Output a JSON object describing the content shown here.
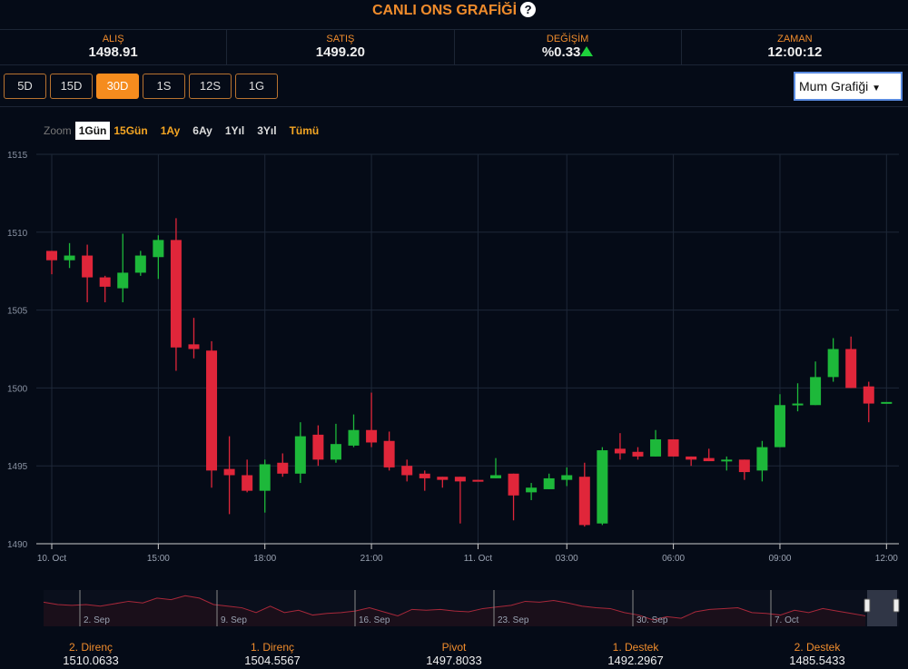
{
  "header": {
    "title": "CANLI ONS GRAFİĞİ",
    "help_icon": "?"
  },
  "stats": [
    {
      "label": "ALIŞ",
      "value": "1498.91"
    },
    {
      "label": "SATIŞ",
      "value": "1499.20"
    },
    {
      "label": "DEĞİŞİM",
      "value": "%0.33"
    },
    {
      "label": "ZAMAN",
      "value": "12:00:12"
    }
  ],
  "periods": [
    {
      "label": "5D"
    },
    {
      "label": "15D"
    },
    {
      "label": "30D",
      "active": true
    },
    {
      "label": "1S"
    },
    {
      "label": "12S"
    },
    {
      "label": "1G"
    }
  ],
  "chart_type_select": {
    "value": "Mum Grafiği",
    "arrow": "▼"
  },
  "zoom": {
    "label": "Zoom",
    "options": [
      "1Gün",
      "15Gün",
      "1Ay",
      "6Ay",
      "1Yıl",
      "3Yıl",
      "Tümü"
    ],
    "selected": "1Gün"
  },
  "colors": {
    "up": "#1db83a",
    "down": "#e0263a",
    "accent": "#f08c2c"
  },
  "chart_data": {
    "type": "candlestick",
    "title": "CANLI ONS GRAFİĞİ",
    "ylim": [
      1490,
      1515
    ],
    "yticks": [
      "1490",
      "1495",
      "1500",
      "1505",
      "1510",
      "1515"
    ],
    "xticks": [
      {
        "label": "10. Oct",
        "index": 0
      },
      {
        "label": "15:00",
        "index": 6
      },
      {
        "label": "18:00",
        "index": 12
      },
      {
        "label": "21:00",
        "index": 18
      },
      {
        "label": "11. Oct",
        "index": 24
      },
      {
        "label": "03:00",
        "index": 29
      },
      {
        "label": "06:00",
        "index": 35
      },
      {
        "label": "09:00",
        "index": 41
      },
      {
        "label": "12:00",
        "index": 47
      }
    ],
    "grid": true,
    "candles": [
      [
        1508.8,
        1508.8,
        1507.3,
        1508.2
      ],
      [
        1508.2,
        1509.3,
        1507.7,
        1508.5
      ],
      [
        1508.5,
        1509.2,
        1505.5,
        1507.1
      ],
      [
        1507.1,
        1507.2,
        1505.5,
        1506.5
      ],
      [
        1506.4,
        1509.9,
        1505.5,
        1507.4
      ],
      [
        1507.4,
        1508.8,
        1507.2,
        1508.5
      ],
      [
        1508.4,
        1509.8,
        1507.0,
        1509.5
      ],
      [
        1509.5,
        1510.9,
        1501.1,
        1502.6
      ],
      [
        1502.8,
        1504.5,
        1501.9,
        1502.5
      ],
      [
        1502.4,
        1503.0,
        1493.6,
        1494.7
      ],
      [
        1494.8,
        1496.9,
        1491.9,
        1494.4
      ],
      [
        1494.4,
        1495.4,
        1493.3,
        1493.4
      ],
      [
        1493.4,
        1495.4,
        1492.0,
        1495.1
      ],
      [
        1495.2,
        1495.8,
        1494.3,
        1494.5
      ],
      [
        1494.5,
        1497.8,
        1493.9,
        1496.9
      ],
      [
        1497.0,
        1497.6,
        1495.0,
        1495.4
      ],
      [
        1495.4,
        1497.7,
        1495.2,
        1496.4
      ],
      [
        1496.3,
        1498.3,
        1496.2,
        1497.3
      ],
      [
        1497.3,
        1499.7,
        1496.2,
        1496.5
      ],
      [
        1496.6,
        1497.2,
        1494.7,
        1494.9
      ],
      [
        1495.0,
        1495.4,
        1494.0,
        1494.4
      ],
      [
        1494.5,
        1494.7,
        1493.4,
        1494.2
      ],
      [
        1494.3,
        1494.3,
        1493.6,
        1494.1
      ],
      [
        1494.3,
        1494.3,
        1491.3,
        1494.0
      ],
      [
        1494.1,
        1494.1,
        1494.0,
        1494.0
      ],
      [
        1494.2,
        1495.5,
        1494.2,
        1494.4
      ],
      [
        1494.5,
        1494.5,
        1491.5,
        1493.1
      ],
      [
        1493.3,
        1493.9,
        1492.8,
        1493.6
      ],
      [
        1493.5,
        1494.5,
        1493.5,
        1494.2
      ],
      [
        1494.1,
        1494.9,
        1493.7,
        1494.4
      ],
      [
        1494.3,
        1495.2,
        1491.1,
        1491.2
      ],
      [
        1491.3,
        1496.2,
        1491.2,
        1496.0
      ],
      [
        1496.1,
        1497.1,
        1495.4,
        1495.8
      ],
      [
        1495.9,
        1496.2,
        1495.4,
        1495.6
      ],
      [
        1495.6,
        1497.3,
        1495.6,
        1496.7
      ],
      [
        1496.7,
        1496.7,
        1495.6,
        1495.6
      ],
      [
        1495.6,
        1495.6,
        1495.0,
        1495.4
      ],
      [
        1495.5,
        1496.1,
        1495.3,
        1495.3
      ],
      [
        1495.3,
        1495.6,
        1494.7,
        1495.4
      ],
      [
        1495.4,
        1495.4,
        1494.1,
        1494.6
      ],
      [
        1494.7,
        1496.6,
        1494.0,
        1496.2
      ],
      [
        1496.2,
        1499.6,
        1496.2,
        1498.9
      ],
      [
        1498.9,
        1500.3,
        1498.5,
        1499.0
      ],
      [
        1498.9,
        1501.7,
        1498.9,
        1500.7
      ],
      [
        1500.7,
        1503.2,
        1500.4,
        1502.5
      ],
      [
        1502.5,
        1503.3,
        1500.0,
        1500.0
      ],
      [
        1500.1,
        1500.4,
        1497.8,
        1499.0
      ],
      [
        1499.1,
        1499.1,
        1499.1,
        1499.1
      ]
    ],
    "candle_fields": [
      "open",
      "high",
      "low",
      "close"
    ],
    "navigator": {
      "labels": [
        "2. Sep",
        "9. Sep",
        "16. Sep",
        "23. Sep",
        "30. Sep",
        "7. Oct"
      ],
      "values": [
        1525,
        1522,
        1521,
        1522,
        1520,
        1523,
        1526,
        1524,
        1530,
        1528,
        1533,
        1530,
        1522,
        1520,
        1518,
        1512,
        1520,
        1512,
        1515,
        1509,
        1511,
        1512,
        1514,
        1518,
        1513,
        1508,
        1516,
        1515,
        1516,
        1514,
        1513,
        1517,
        1519,
        1521,
        1526,
        1525,
        1527,
        1524,
        1520,
        1518,
        1517,
        1512,
        1509,
        1503,
        1507,
        1505,
        1513,
        1516,
        1517,
        1518,
        1512,
        1511,
        1509,
        1515,
        1512,
        1517,
        1514,
        1511,
        1508
      ]
    }
  },
  "levels": [
    {
      "label": "2. Direnç",
      "value": "1510.0633"
    },
    {
      "label": "1. Direnç",
      "value": "1504.5567"
    },
    {
      "label": "Pivot",
      "value": "1497.8033"
    },
    {
      "label": "1. Destek",
      "value": "1492.2967"
    },
    {
      "label": "2. Destek",
      "value": "1485.5433"
    }
  ]
}
